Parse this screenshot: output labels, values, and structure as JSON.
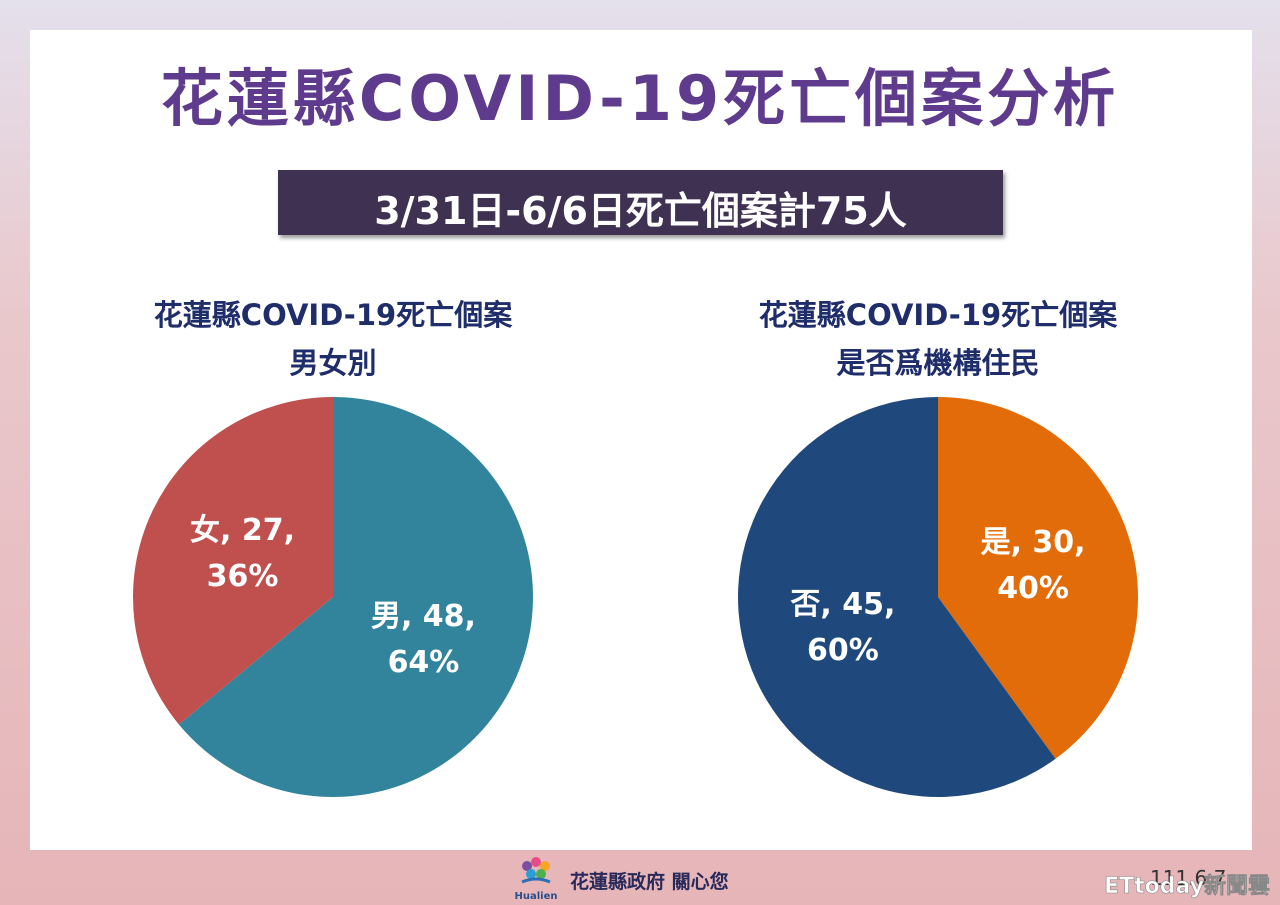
{
  "title": "花蓮縣COVID-19死亡個案分析",
  "subtitle": "3/31日-6/6日死亡個案計75人",
  "chart_data": [
    {
      "type": "pie",
      "title": "花蓮縣COVID-19死亡個案",
      "subtitle": "男女別",
      "categories": [
        "男",
        "女"
      ],
      "values": [
        48,
        27
      ],
      "value_labels": [
        "男, 48, 64%",
        "女, 27, 36%"
      ],
      "colors": [
        "#31849b",
        "#c0504d"
      ]
    },
    {
      "type": "pie",
      "title": "花蓮縣COVID-19死亡個案",
      "subtitle": "是否爲機構住民",
      "categories": [
        "是",
        "否"
      ],
      "values": [
        30,
        45
      ],
      "value_labels": [
        "是, 30, 40%",
        "否, 45, 60%"
      ],
      "colors": [
        "#e36c0a",
        "#1f497d"
      ]
    }
  ],
  "footer": {
    "logo_text": "Hualien",
    "slogan": "花蓮縣政府 關心您",
    "date": "111.6.7",
    "watermark": "ETtoday新聞雲"
  }
}
